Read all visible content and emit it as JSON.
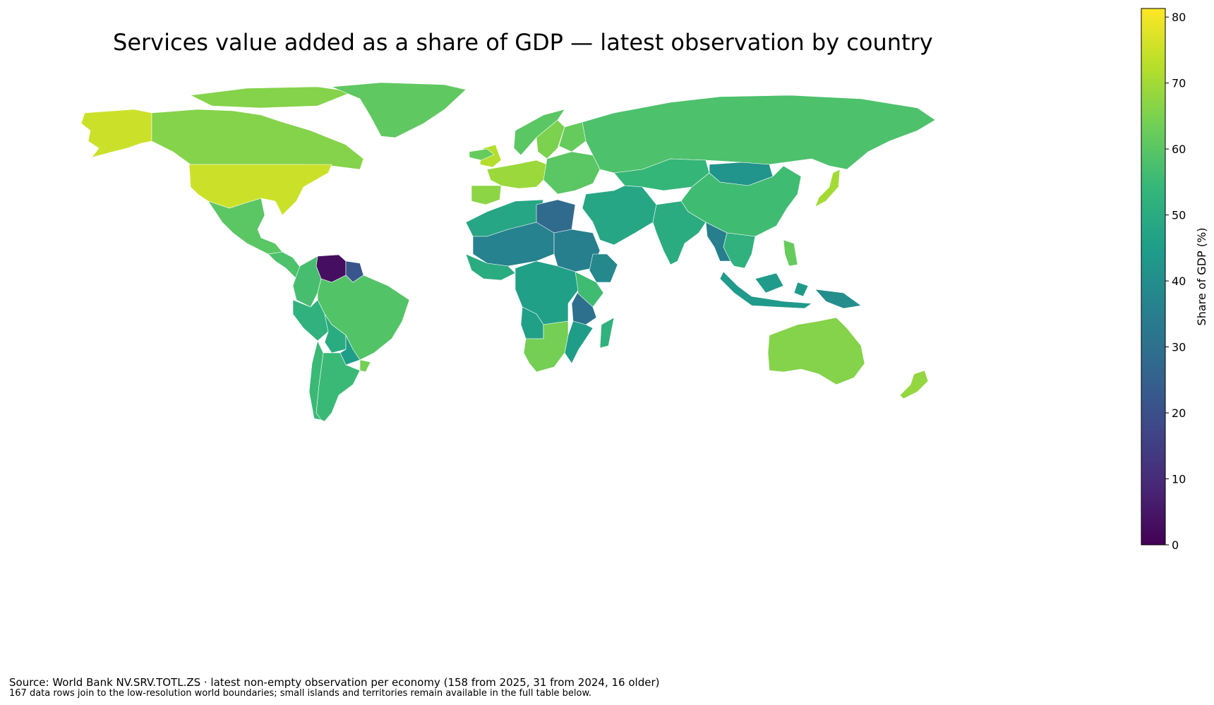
{
  "title": "Services value added as a share of GDP — latest observation by country",
  "colorbar": {
    "label": "Share of GDP (%)",
    "range": [
      0,
      81.3
    ],
    "ticks": [
      "0",
      "10",
      "20",
      "30",
      "40",
      "50",
      "60",
      "70",
      "80"
    ],
    "colormap": "viridis",
    "stops": [
      "#440154",
      "#482878",
      "#3e4989",
      "#31688e",
      "#26828e",
      "#1f9e89",
      "#35b779",
      "#6ece58",
      "#b5de2b",
      "#fde725"
    ]
  },
  "footer": {
    "source": "Source: World Bank NV.SRV.TOTL.ZS · latest non-empty observation per economy (158 from 2025, 31 from 2024, 16 older)",
    "note": "167 data rows join to the low-resolution world boundaries; small islands and territories remain available in the full table below."
  },
  "regions": [
    {
      "name": "Alaska (USA)",
      "value": 75
    },
    {
      "name": "Canada",
      "value": 66
    },
    {
      "name": "USA",
      "value": 75
    },
    {
      "name": "Greenland",
      "value": 61
    },
    {
      "name": "Mexico",
      "value": 60
    },
    {
      "name": "Central America",
      "value": 58
    },
    {
      "name": "Venezuela",
      "value": 3
    },
    {
      "name": "Colombia",
      "value": 57
    },
    {
      "name": "Guyana",
      "value": 22
    },
    {
      "name": "Brazil",
      "value": 59
    },
    {
      "name": "Peru",
      "value": 52
    },
    {
      "name": "Bolivia",
      "value": 50
    },
    {
      "name": "Argentina",
      "value": 55
    },
    {
      "name": "Chile",
      "value": 55
    },
    {
      "name": "Paraguay",
      "value": 45
    },
    {
      "name": "Uruguay",
      "value": 64
    },
    {
      "name": "United Kingdom",
      "value": 72
    },
    {
      "name": "Iceland",
      "value": 62
    },
    {
      "name": "Norway",
      "value": 60
    },
    {
      "name": "Sweden",
      "value": 65
    },
    {
      "name": "Finland",
      "value": 62
    },
    {
      "name": "Western Europe",
      "value": 69
    },
    {
      "name": "Iberia",
      "value": 67
    },
    {
      "name": "Eastern Europe",
      "value": 60
    },
    {
      "name": "Russia",
      "value": 58
    },
    {
      "name": "Kazakhstan",
      "value": 54
    },
    {
      "name": "Mongolia",
      "value": 42
    },
    {
      "name": "China",
      "value": 56
    },
    {
      "name": "Japan",
      "value": 70
    },
    {
      "name": "Middle East",
      "value": 48
    },
    {
      "name": "India",
      "value": 50
    },
    {
      "name": "Myanmar",
      "value": 35
    },
    {
      "name": "Southeast Asia",
      "value": 52
    },
    {
      "name": "Indonesia",
      "value": 44
    },
    {
      "name": "Philippines",
      "value": 62
    },
    {
      "name": "Papua New Guinea",
      "value": 40
    },
    {
      "name": "Australia",
      "value": 66
    },
    {
      "name": "New Zealand",
      "value": 68
    },
    {
      "name": "Northwest Africa",
      "value": 48
    },
    {
      "name": "Libya",
      "value": 28
    },
    {
      "name": "Sahel",
      "value": 36
    },
    {
      "name": "Sudan",
      "value": 35
    },
    {
      "name": "Ethiopia",
      "value": 38
    },
    {
      "name": "West Africa",
      "value": 50
    },
    {
      "name": "Central Africa",
      "value": 46
    },
    {
      "name": "Kenya",
      "value": 56
    },
    {
      "name": "Tanzania",
      "value": 30
    },
    {
      "name": "Mozambique",
      "value": 45
    },
    {
      "name": "Angola",
      "value": 46
    },
    {
      "name": "Southern Africa",
      "value": 64
    },
    {
      "name": "Madagascar",
      "value": 52
    }
  ]
}
